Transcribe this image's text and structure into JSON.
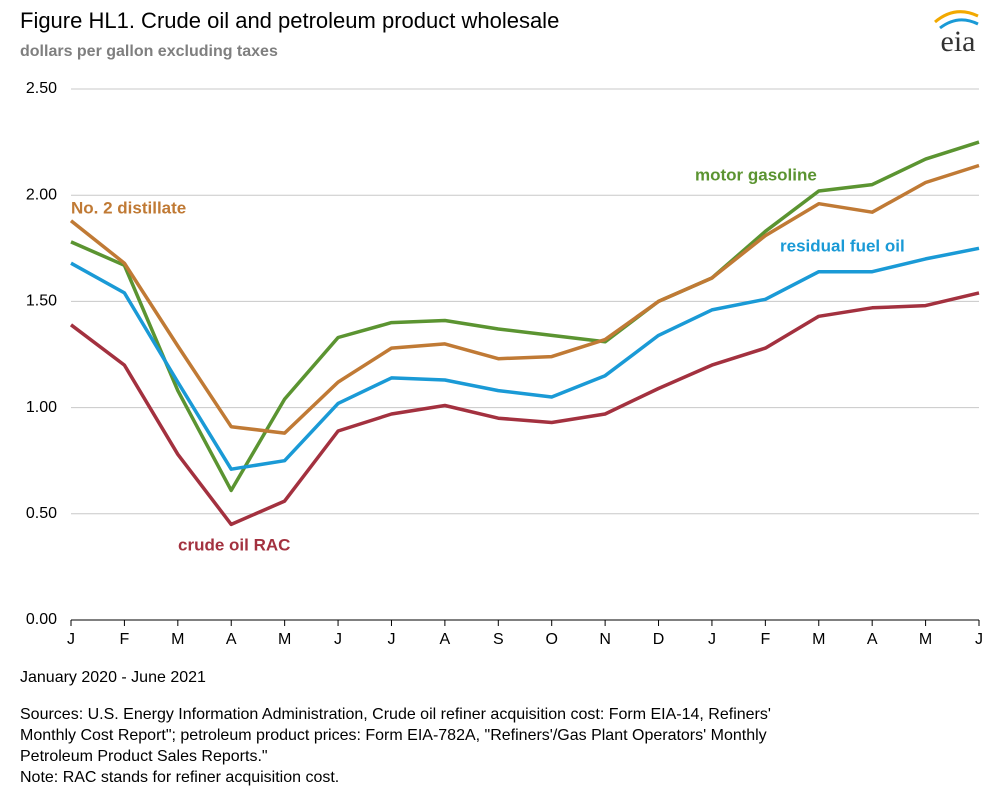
{
  "chart_data": {
    "type": "line",
    "title": "Figure HL1.  Crude oil and petroleum product wholesale",
    "subtitle": "dollars per gallon excluding taxes",
    "logo": "eia",
    "x_label": "January 2020 - June 2021",
    "sources": [
      "Sources:  U.S. Energy Information Administration, Crude oil refiner acquisition cost:  Form EIA-14, Refiners'",
      "Monthly  Cost Report\"; petroleum product prices:  Form EIA-782A, \"Refiners'/Gas Plant Operators' Monthly",
      "Petroleum Product Sales Reports.\""
    ],
    "note": "Note:  RAC stands for refiner acquisition cost.",
    "categories": [
      "J",
      "F",
      "M",
      "A",
      "M",
      "J",
      "J",
      "A",
      "S",
      "O",
      "N",
      "D",
      "J",
      "F",
      "M",
      "A",
      "M",
      "J"
    ],
    "ylim": [
      0,
      2.5
    ],
    "yticks": [
      {
        "value": 0,
        "label": "0.00"
      },
      {
        "value": 0.5,
        "label": "0.50"
      },
      {
        "value": 1,
        "label": "1.00"
      },
      {
        "value": 1.5,
        "label": "1.50"
      },
      {
        "value": 2,
        "label": "2.00"
      },
      {
        "value": 2.5,
        "label": "2.50"
      }
    ],
    "grid": true,
    "series": [
      {
        "name": "motor gasoline",
        "color": "#5b9431",
        "values": [
          1.78,
          1.67,
          1.08,
          0.61,
          1.04,
          1.33,
          1.4,
          1.41,
          1.37,
          1.34,
          1.31,
          1.5,
          1.61,
          1.83,
          2.02,
          2.05,
          2.17,
          2.25
        ]
      },
      {
        "name": "No. 2 distillate",
        "color": "#c07a35",
        "values": [
          1.88,
          1.68,
          1.29,
          0.91,
          0.88,
          1.12,
          1.28,
          1.3,
          1.23,
          1.24,
          1.32,
          1.5,
          1.61,
          1.81,
          1.96,
          1.92,
          2.06,
          2.14
        ]
      },
      {
        "name": "residual fuel oil",
        "color": "#1a9ad6",
        "values": [
          1.68,
          1.54,
          1.12,
          0.71,
          0.75,
          1.02,
          1.14,
          1.13,
          1.08,
          1.05,
          1.15,
          1.34,
          1.46,
          1.51,
          1.64,
          1.64,
          1.7,
          1.75
        ]
      },
      {
        "name": "crude oil RAC",
        "color": "#a3313f",
        "values": [
          1.39,
          1.2,
          0.78,
          0.45,
          0.56,
          0.89,
          0.97,
          1.01,
          0.95,
          0.93,
          0.97,
          1.09,
          1.2,
          1.28,
          1.43,
          1.47,
          1.48,
          1.54
        ]
      }
    ]
  }
}
